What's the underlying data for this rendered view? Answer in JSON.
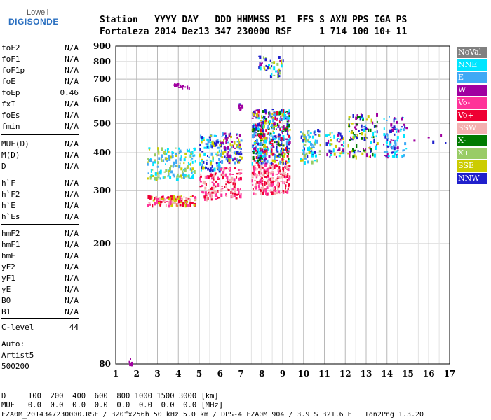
{
  "logo": {
    "top": "Lowell",
    "main": "DIGISONDE"
  },
  "header": {
    "line1": "Station   YYYY DAY   DDD HHMMSS P1  FFS S AXN PPS IGA PS",
    "line2": "Fortaleza 2014 Dez13 347 230000 RSF     1 714 100 10+ 11"
  },
  "params": {
    "group1": [
      {
        "name": "foF2",
        "value": "N/A"
      },
      {
        "name": "foF1",
        "value": "N/A"
      },
      {
        "name": "foF1p",
        "value": "N/A"
      },
      {
        "name": "foE",
        "value": "N/A"
      },
      {
        "name": "foEp",
        "value": "0.46"
      },
      {
        "name": "fxI",
        "value": "N/A"
      },
      {
        "name": "foEs",
        "value": "N/A"
      },
      {
        "name": "fmin",
        "value": "N/A"
      }
    ],
    "group2": [
      {
        "name": "MUF(D)",
        "value": "N/A"
      },
      {
        "name": "M(D)",
        "value": "N/A"
      },
      {
        "name": "D",
        "value": "N/A"
      }
    ],
    "group3": [
      {
        "name": "h`F",
        "value": "N/A"
      },
      {
        "name": "h`F2",
        "value": "N/A"
      },
      {
        "name": "h`E",
        "value": "N/A"
      },
      {
        "name": "h`Es",
        "value": "N/A"
      }
    ],
    "group4": [
      {
        "name": "hmF2",
        "value": "N/A"
      },
      {
        "name": "hmF1",
        "value": "N/A"
      },
      {
        "name": "hmE",
        "value": "N/A"
      },
      {
        "name": "yF2",
        "value": "N/A"
      },
      {
        "name": "yF1",
        "value": "N/A"
      },
      {
        "name": "yE",
        "value": "N/A"
      },
      {
        "name": "B0",
        "value": "N/A"
      },
      {
        "name": "B1",
        "value": "N/A"
      }
    ],
    "clevel": {
      "name": "C-level",
      "value": "44"
    }
  },
  "auto": {
    "line1": "Auto:",
    "line2": "Artist5",
    "line3": "500200"
  },
  "bottom": {
    "d_line": "D     100  200  400  600  800 1000 1500 3000 [km]",
    "muf_line": "MUF   0.0  0.0  0.0  0.0  0.0  0.0  0.0  0.0 [MHz]",
    "file_line": "FZA0M_2014347230000.RSF / 320fx256h 50 kHz 5.0 km / DPS-4 FZA0M 904 / 3.9 S 321.6 E   Ion2Png 1.3.20"
  },
  "chart_data": {
    "type": "scatter",
    "xlim": [
      1,
      17
    ],
    "ylim": [
      80,
      900
    ],
    "xticks": [
      "1",
      "2",
      "3",
      "4",
      "5",
      "6",
      "7",
      "8",
      "9",
      "10",
      "11",
      "12",
      "13",
      "14",
      "15",
      "16",
      "17"
    ],
    "yticks": [
      "80",
      "200",
      "300",
      "400",
      "500",
      "600",
      "700",
      "800",
      "900"
    ],
    "y_scale": "log",
    "grid": true,
    "legend_position": "right",
    "legend": [
      {
        "label": "NoVal",
        "color": "#808080"
      },
      {
        "label": "NNE",
        "color": "#00e5ff"
      },
      {
        "label": "E",
        "color": "#3fa9f5"
      },
      {
        "label": "W",
        "color": "#a000a0"
      },
      {
        "label": "Vo-",
        "color": "#ff3399"
      },
      {
        "label": "Vo+",
        "color": "#ee0033"
      },
      {
        "label": "SSW",
        "color": "#f4b0b0"
      },
      {
        "label": "X-",
        "color": "#007a00"
      },
      {
        "label": "X+",
        "color": "#99cc66"
      },
      {
        "label": "SSE",
        "color": "#cccc00"
      },
      {
        "label": "NNW",
        "color": "#2020cc"
      }
    ],
    "clusters": [
      {
        "x": [
          1.6,
          1.8
        ],
        "y": [
          80,
          84
        ],
        "colors": [
          "#ee0033",
          "#a000a0"
        ],
        "n": 6
      },
      {
        "x": [
          2.5,
          4.8
        ],
        "y": [
          268,
          290
        ],
        "colors": [
          "#ee0033",
          "#f4b0b0",
          "#cccc00",
          "#ff3399"
        ],
        "n": 120
      },
      {
        "x": [
          2.5,
          4.8
        ],
        "y": [
          330,
          420
        ],
        "colors": [
          "#cccc00",
          "#3fa9f5",
          "#00e5ff",
          "#99cc66"
        ],
        "n": 170
      },
      {
        "x": [
          3.7,
          4.5
        ],
        "y": [
          660,
          680
        ],
        "colors": [
          "#a000a0"
        ],
        "n": 18
      },
      {
        "x": [
          5.0,
          5.9
        ],
        "y": [
          280,
          345
        ],
        "colors": [
          "#ee0033",
          "#f4b0b0",
          "#ff3399"
        ],
        "n": 80
      },
      {
        "x": [
          5.0,
          6.0
        ],
        "y": [
          350,
          460
        ],
        "colors": [
          "#3fa9f5",
          "#cccc00",
          "#00e5ff",
          "#2020cc"
        ],
        "n": 100
      },
      {
        "x": [
          6.0,
          7.0
        ],
        "y": [
          285,
          360
        ],
        "colors": [
          "#f4b0b0",
          "#ee0033",
          "#ff3399"
        ],
        "n": 80
      },
      {
        "x": [
          6.0,
          7.0
        ],
        "y": [
          370,
          470
        ],
        "colors": [
          "#cccc00",
          "#3fa9f5",
          "#a000a0",
          "#2020cc"
        ],
        "n": 100
      },
      {
        "x": [
          6.8,
          7.1
        ],
        "y": [
          560,
          590
        ],
        "colors": [
          "#2020cc",
          "#a000a0"
        ],
        "n": 8
      },
      {
        "x": [
          7.5,
          9.3
        ],
        "y": [
          295,
          370
        ],
        "colors": [
          "#f4b0b0",
          "#ff3399",
          "#ee0033"
        ],
        "n": 220
      },
      {
        "x": [
          7.5,
          9.3
        ],
        "y": [
          370,
          560
        ],
        "colors": [
          "#2020cc",
          "#cccc00",
          "#3fa9f5",
          "#a000a0",
          "#00e5ff",
          "#ee0033",
          "#007a00"
        ],
        "n": 480
      },
      {
        "x": [
          7.8,
          9.0
        ],
        "y": [
          720,
          840
        ],
        "colors": [
          "#00e5ff",
          "#cccc00",
          "#2020cc",
          "#a000a0",
          "#99cc66"
        ],
        "n": 45
      },
      {
        "x": [
          9.8,
          10.8
        ],
        "y": [
          375,
          480
        ],
        "colors": [
          "#cccc00",
          "#99cc66",
          "#00e5ff",
          "#3fa9f5",
          "#2020cc"
        ],
        "n": 80
      },
      {
        "x": [
          11.0,
          11.9
        ],
        "y": [
          385,
          470
        ],
        "colors": [
          "#cccc00",
          "#2020cc",
          "#a000a0",
          "#00e5ff"
        ],
        "n": 45
      },
      {
        "x": [
          12.1,
          13.5
        ],
        "y": [
          390,
          540
        ],
        "colors": [
          "#2020cc",
          "#00e5ff",
          "#a000a0",
          "#cccc00",
          "#007a00"
        ],
        "n": 110
      },
      {
        "x": [
          13.8,
          14.9
        ],
        "y": [
          390,
          530
        ],
        "colors": [
          "#2020cc",
          "#a000a0",
          "#00e5ff",
          "#3fa9f5"
        ],
        "n": 90
      },
      {
        "x": [
          15.2,
          16.8
        ],
        "y": [
          430,
          460
        ],
        "colors": [
          "#a000a0",
          "#2020cc"
        ],
        "n": 5
      }
    ]
  }
}
